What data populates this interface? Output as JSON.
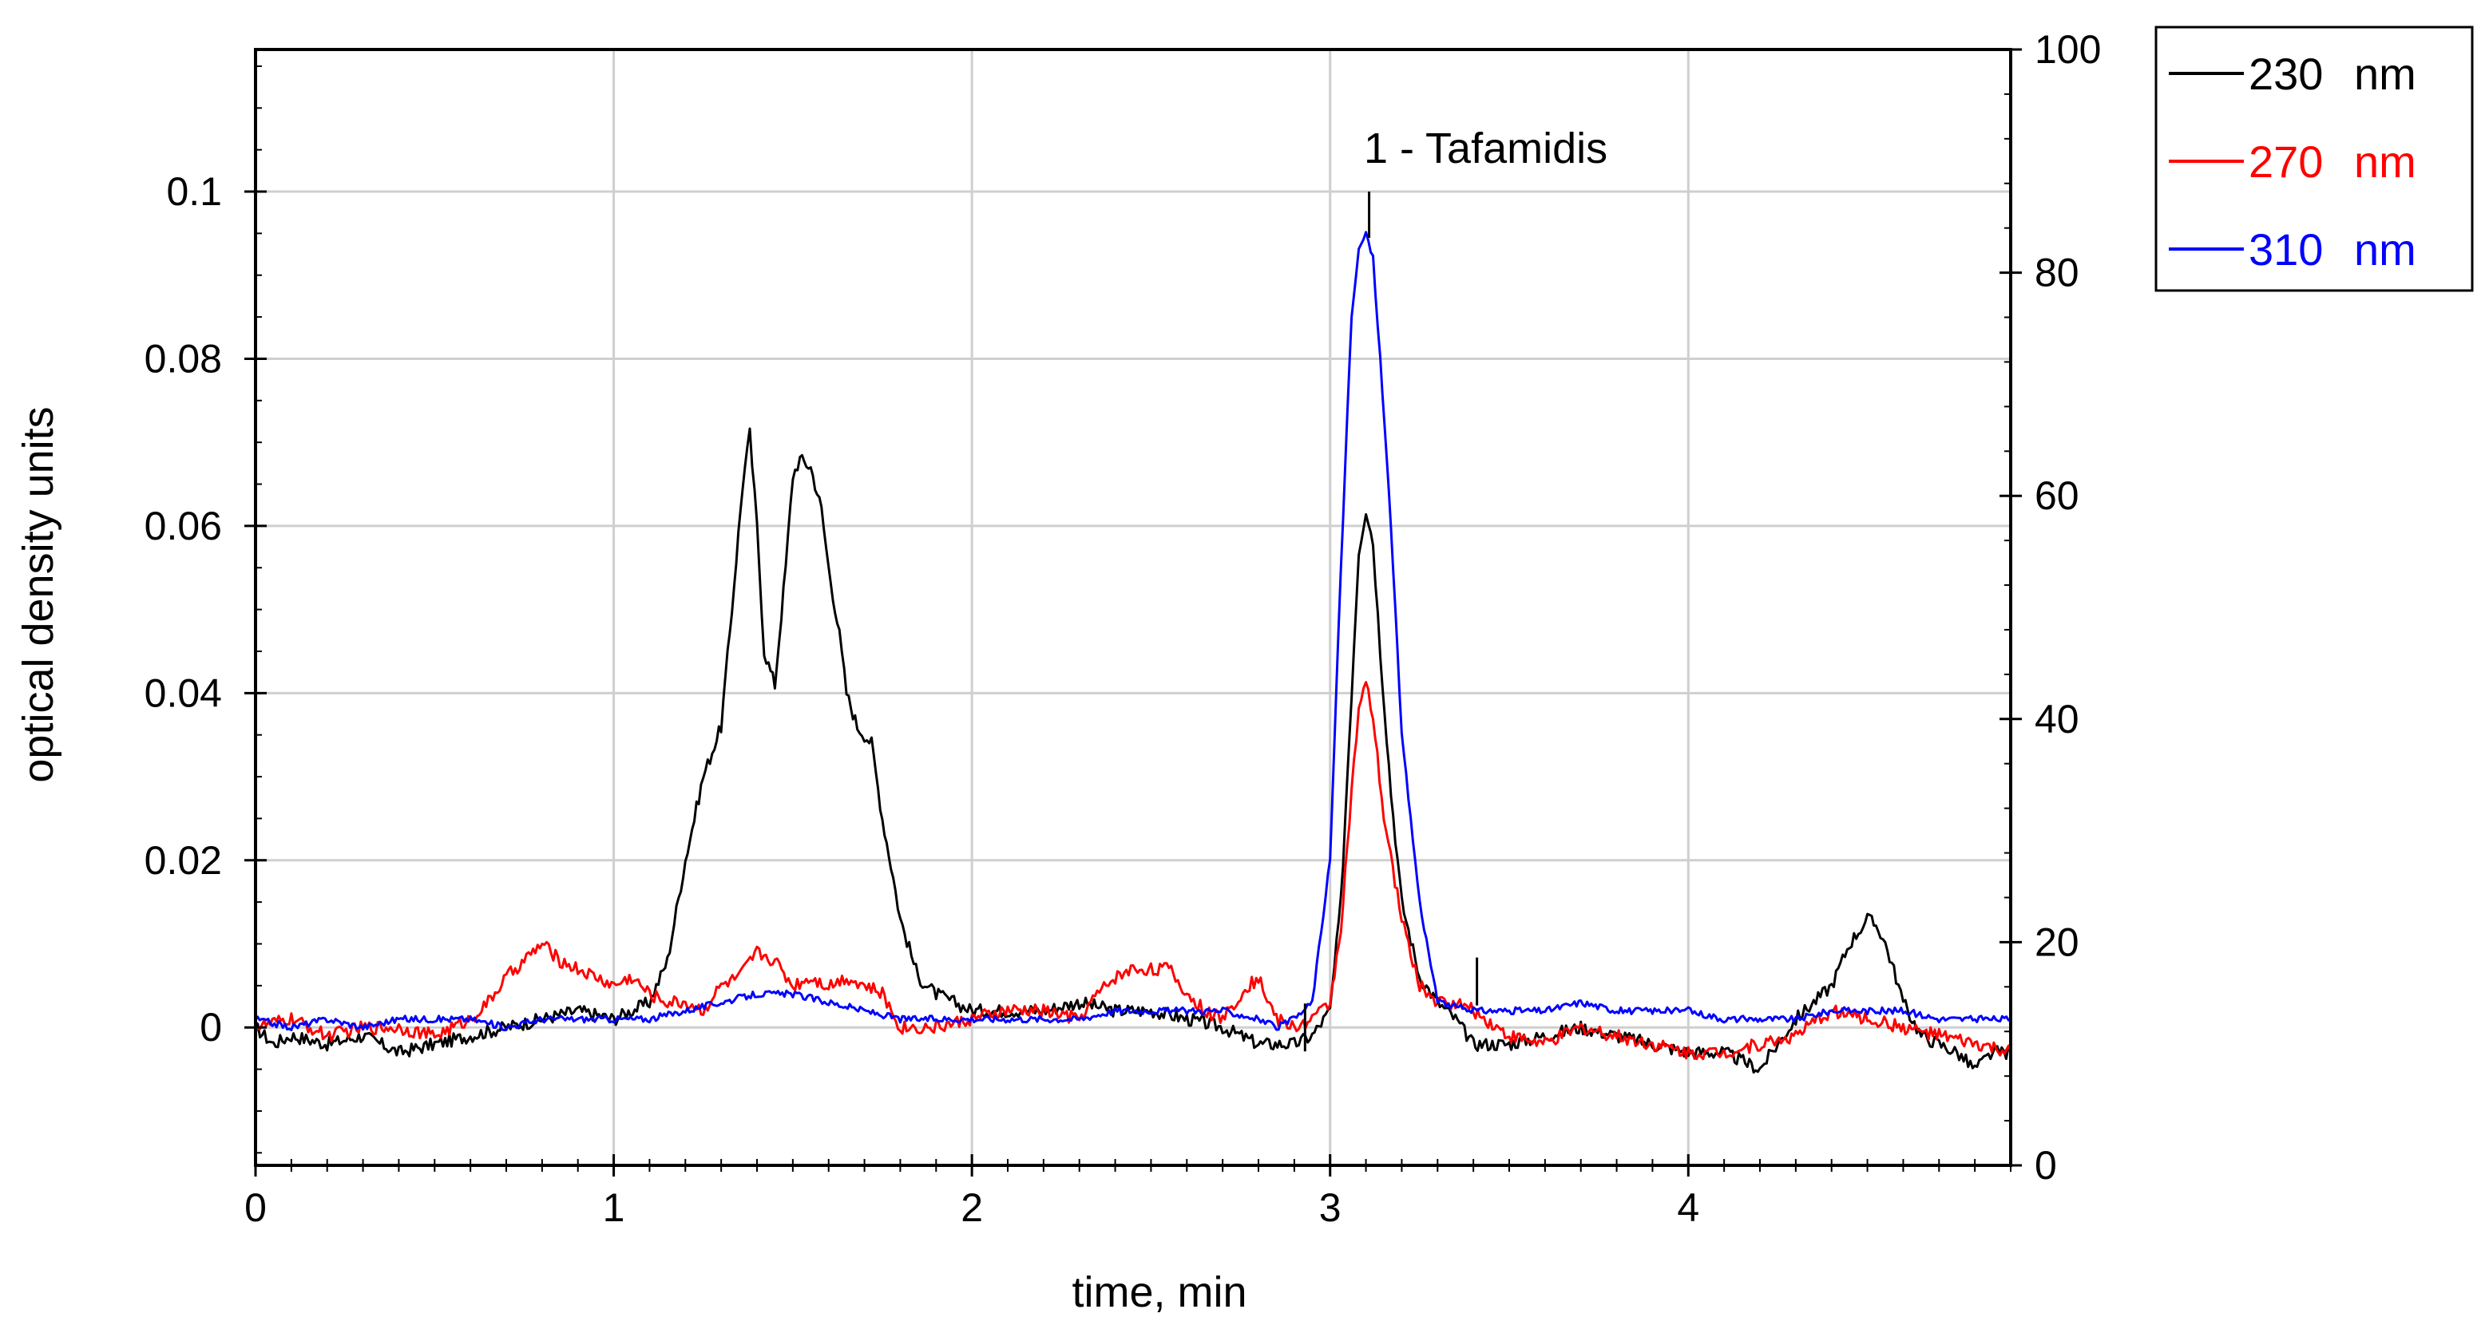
{
  "chart_data": {
    "type": "line",
    "title": "",
    "xlabel": "time, min",
    "ylabel": "optical density units",
    "xlim": [
      0,
      4.9
    ],
    "ylim": [
      -0.0165,
      0.117
    ],
    "y2lim": [
      0,
      100
    ],
    "xticks": [
      0,
      1,
      2,
      3,
      4
    ],
    "yticks": [
      0,
      0.02,
      0.04,
      0.06,
      0.08,
      0.1
    ],
    "ytick_labels": [
      "0",
      "0.02",
      "0.04",
      "0.06",
      "0.08",
      "0.1"
    ],
    "y2ticks": [
      0,
      20,
      40,
      60,
      80,
      100
    ],
    "grid": true,
    "legend_position": "top-right",
    "annotations": [
      {
        "text": "1 - Tafamidis",
        "x": 3.1,
        "y": 0.105
      }
    ],
    "marker_ticks": [
      {
        "x": 2.93,
        "y": 0.0
      },
      {
        "x": 3.41,
        "y": 0.0055
      }
    ],
    "series": [
      {
        "name": "230",
        "unit": "nm",
        "color": "#000000",
        "x": [
          0.0,
          0.05,
          0.1,
          0.2,
          0.3,
          0.4,
          0.5,
          0.6,
          0.7,
          0.8,
          0.9,
          1.0,
          1.1,
          1.15,
          1.2,
          1.25,
          1.3,
          1.33,
          1.36,
          1.38,
          1.4,
          1.42,
          1.45,
          1.48,
          1.5,
          1.52,
          1.55,
          1.58,
          1.6,
          1.63,
          1.65,
          1.68,
          1.7,
          1.72,
          1.75,
          1.78,
          1.8,
          1.85,
          1.9,
          1.95,
          2.0,
          2.1,
          2.2,
          2.3,
          2.4,
          2.5,
          2.6,
          2.7,
          2.8,
          2.9,
          2.95,
          3.0,
          3.03,
          3.06,
          3.08,
          3.1,
          3.12,
          3.14,
          3.17,
          3.2,
          3.25,
          3.3,
          3.35,
          3.4,
          3.5,
          3.6,
          3.7,
          3.8,
          3.9,
          4.0,
          4.1,
          4.2,
          4.25,
          4.3,
          4.35,
          4.4,
          4.45,
          4.5,
          4.53,
          4.55,
          4.58,
          4.6,
          4.65,
          4.7,
          4.75,
          4.8,
          4.85,
          4.9
        ],
        "values": [
          0.0,
          -0.002,
          -0.001,
          -0.002,
          -0.001,
          -0.003,
          -0.002,
          -0.001,
          0.0,
          0.001,
          0.002,
          0.001,
          0.003,
          0.008,
          0.02,
          0.03,
          0.036,
          0.05,
          0.065,
          0.071,
          0.06,
          0.045,
          0.041,
          0.055,
          0.066,
          0.068,
          0.067,
          0.062,
          0.055,
          0.047,
          0.04,
          0.036,
          0.035,
          0.034,
          0.025,
          0.018,
          0.013,
          0.006,
          0.004,
          0.003,
          0.002,
          0.002,
          0.002,
          0.003,
          0.002,
          0.002,
          0.001,
          0.0,
          -0.002,
          -0.002,
          -0.001,
          0.002,
          0.015,
          0.04,
          0.057,
          0.062,
          0.058,
          0.045,
          0.028,
          0.015,
          0.006,
          0.003,
          0.001,
          -0.002,
          -0.002,
          -0.001,
          0.0,
          -0.001,
          -0.002,
          -0.003,
          -0.003,
          -0.005,
          -0.002,
          0.001,
          0.003,
          0.005,
          0.01,
          0.013,
          0.012,
          0.01,
          0.006,
          0.003,
          -0.001,
          -0.002,
          -0.003,
          -0.005,
          -0.003,
          -0.003
        ]
      },
      {
        "name": "270",
        "unit": "nm",
        "color": "#ff0000",
        "x": [
          0.0,
          0.1,
          0.2,
          0.3,
          0.4,
          0.5,
          0.6,
          0.65,
          0.7,
          0.75,
          0.8,
          0.85,
          0.9,
          0.95,
          1.0,
          1.05,
          1.1,
          1.15,
          1.2,
          1.25,
          1.3,
          1.35,
          1.4,
          1.45,
          1.5,
          1.55,
          1.6,
          1.65,
          1.7,
          1.75,
          1.8,
          1.9,
          2.0,
          2.1,
          2.2,
          2.3,
          2.35,
          2.4,
          2.45,
          2.5,
          2.55,
          2.6,
          2.65,
          2.7,
          2.75,
          2.8,
          2.85,
          2.9,
          2.95,
          3.0,
          3.03,
          3.06,
          3.08,
          3.1,
          3.12,
          3.15,
          3.2,
          3.25,
          3.3,
          3.35,
          3.4,
          3.5,
          3.6,
          3.7,
          3.8,
          3.9,
          4.0,
          4.1,
          4.2,
          4.3,
          4.4,
          4.5,
          4.6,
          4.7,
          4.8,
          4.9
        ],
        "values": [
          0.0,
          0.001,
          -0.001,
          0.0,
          0.0,
          -0.001,
          0.001,
          0.003,
          0.006,
          0.008,
          0.01,
          0.008,
          0.007,
          0.006,
          0.005,
          0.006,
          0.004,
          0.003,
          0.003,
          0.002,
          0.005,
          0.006,
          0.009,
          0.008,
          0.005,
          0.006,
          0.005,
          0.006,
          0.005,
          0.004,
          0.0,
          0.0,
          0.001,
          0.002,
          0.002,
          0.001,
          0.004,
          0.006,
          0.007,
          0.007,
          0.007,
          0.004,
          0.002,
          0.001,
          0.004,
          0.006,
          0.001,
          0.0,
          0.001,
          0.003,
          0.012,
          0.028,
          0.038,
          0.041,
          0.037,
          0.025,
          0.013,
          0.005,
          0.003,
          0.003,
          0.002,
          -0.001,
          -0.002,
          0.0,
          -0.001,
          -0.002,
          -0.003,
          -0.003,
          -0.002,
          -0.001,
          0.002,
          0.001,
          0.0,
          -0.001,
          -0.002,
          -0.003
        ]
      },
      {
        "name": "310",
        "unit": "nm",
        "color": "#0000ff",
        "x": [
          0.0,
          0.1,
          0.2,
          0.3,
          0.4,
          0.5,
          0.6,
          0.7,
          0.8,
          0.9,
          1.0,
          1.1,
          1.2,
          1.3,
          1.4,
          1.5,
          1.6,
          1.7,
          1.8,
          1.9,
          2.0,
          2.1,
          2.2,
          2.3,
          2.4,
          2.5,
          2.6,
          2.7,
          2.8,
          2.85,
          2.9,
          2.95,
          3.0,
          3.03,
          3.06,
          3.08,
          3.1,
          3.12,
          3.14,
          3.17,
          3.2,
          3.25,
          3.3,
          3.4,
          3.5,
          3.6,
          3.7,
          3.8,
          3.9,
          4.0,
          4.1,
          4.2,
          4.3,
          4.4,
          4.5,
          4.6,
          4.7,
          4.8,
          4.9
        ],
        "values": [
          0.001,
          0.0,
          0.001,
          0.0,
          0.001,
          0.001,
          0.001,
          0.0,
          0.001,
          0.001,
          0.001,
          0.001,
          0.002,
          0.003,
          0.004,
          0.004,
          0.003,
          0.002,
          0.001,
          0.001,
          0.001,
          0.001,
          0.001,
          0.001,
          0.002,
          0.002,
          0.002,
          0.002,
          0.001,
          0.0,
          0.001,
          0.003,
          0.02,
          0.055,
          0.085,
          0.093,
          0.095,
          0.092,
          0.08,
          0.06,
          0.035,
          0.015,
          0.003,
          0.002,
          0.002,
          0.002,
          0.003,
          0.002,
          0.002,
          0.002,
          0.001,
          0.001,
          0.001,
          0.002,
          0.002,
          0.002,
          0.001,
          0.001,
          0.001
        ]
      }
    ]
  }
}
